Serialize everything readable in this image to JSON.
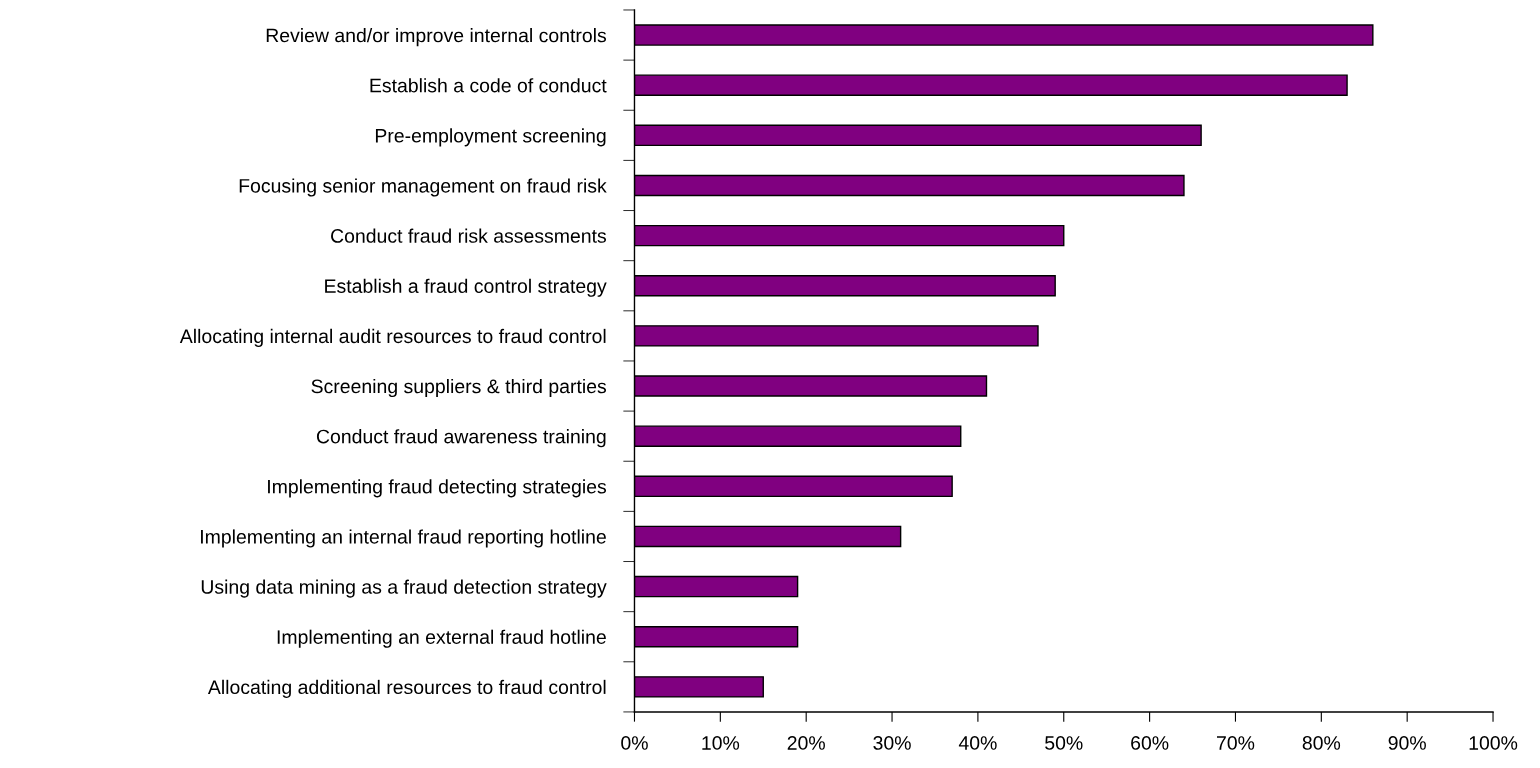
{
  "chart_data": {
    "type": "bar",
    "orientation": "horizontal",
    "categories": [
      "Review and/or improve internal controls",
      "Establish a code of conduct",
      "Pre-employment screening",
      "Focusing senior management on fraud risk",
      "Conduct fraud risk assessments",
      "Establish a fraud control strategy",
      "Allocating internal audit resources to fraud control",
      "Screening suppliers & third parties",
      "Conduct fraud awareness training",
      "Implementing fraud detecting strategies",
      "Implementing an internal fraud reporting hotline",
      "Using data mining as a fraud detection strategy",
      "Implementing an external fraud hotline",
      "Allocating additional resources to fraud control"
    ],
    "values": [
      86,
      83,
      66,
      64,
      50,
      49,
      47,
      41,
      38,
      37,
      31,
      19,
      19,
      15
    ],
    "color": "#800080",
    "xlim": [
      0,
      100
    ],
    "xticks": [
      {
        "value": 0,
        "label": "0%"
      },
      {
        "value": 10,
        "label": "10%"
      },
      {
        "value": 20,
        "label": "20%"
      },
      {
        "value": 30,
        "label": "30%"
      },
      {
        "value": 40,
        "label": "40%"
      },
      {
        "value": 50,
        "label": "50%"
      },
      {
        "value": 60,
        "label": "60%"
      },
      {
        "value": 70,
        "label": "70%"
      },
      {
        "value": 80,
        "label": "80%"
      },
      {
        "value": 90,
        "label": "90%"
      },
      {
        "value": 100,
        "label": "100%"
      }
    ],
    "grid": false,
    "legend": false
  }
}
